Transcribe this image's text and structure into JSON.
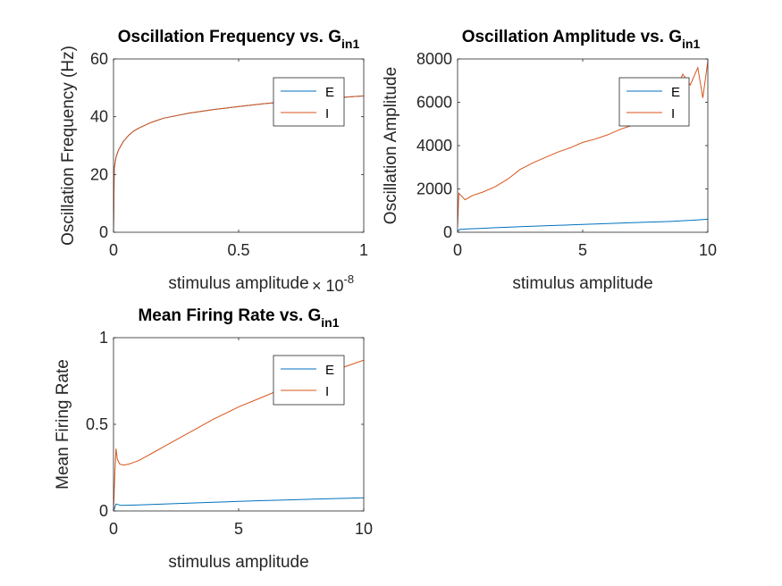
{
  "colors": {
    "E": "#0072BD",
    "I": "#D95319",
    "axis": "#262626",
    "background": "#ffffff"
  },
  "chart_data": [
    {
      "type": "line",
      "title": "Oscillation Frequency vs. G",
      "title_subscript": "in1",
      "xlabel": "stimulus amplitude",
      "ylabel": "Oscillation Frequency (Hz)",
      "xlim": [
        0,
        1
      ],
      "ylim": [
        0,
        60
      ],
      "xticks": [
        0,
        0.5,
        1
      ],
      "xtick_labels": [
        "0",
        "0.5",
        "1"
      ],
      "yticks": [
        0,
        20,
        40,
        60
      ],
      "ytick_labels": [
        "0",
        "20",
        "40",
        "60"
      ],
      "x_exponent": {
        "base": "× 10",
        "power": "-8"
      },
      "legend": {
        "placement": "top-right",
        "entries": [
          "E",
          "I"
        ]
      },
      "series": [
        {
          "name": "E",
          "color": "#0072BD",
          "x": [
            0,
            0.003,
            0.01,
            0.02,
            0.04,
            0.06,
            0.08,
            0.1,
            0.15,
            0.2,
            0.3,
            0.4,
            0.5,
            0.6,
            0.7,
            0.8,
            0.9,
            1.0
          ],
          "y": [
            0,
            22,
            26,
            28.5,
            31.5,
            33.5,
            35,
            36,
            38,
            39.5,
            41.2,
            42.5,
            43.5,
            44.5,
            45.3,
            46,
            46.6,
            47.2
          ]
        },
        {
          "name": "I",
          "color": "#D95319",
          "x": [
            0,
            0.003,
            0.01,
            0.02,
            0.04,
            0.06,
            0.08,
            0.1,
            0.15,
            0.2,
            0.3,
            0.4,
            0.5,
            0.6,
            0.7,
            0.8,
            0.9,
            1.0
          ],
          "y": [
            0,
            22,
            26,
            28.5,
            31.5,
            33.5,
            35,
            36,
            38,
            39.5,
            41.2,
            42.5,
            43.5,
            44.5,
            45.3,
            46,
            46.6,
            47.2
          ]
        }
      ]
    },
    {
      "type": "line",
      "title": "Oscillation Amplitude vs. G",
      "title_subscript": "in1",
      "xlabel": "stimulus amplitude",
      "ylabel": "Oscillation Amplitude",
      "xlim": [
        0,
        10
      ],
      "ylim": [
        0,
        8000
      ],
      "xticks": [
        0,
        5,
        10
      ],
      "xtick_labels": [
        "0",
        "5",
        "10"
      ],
      "yticks": [
        0,
        2000,
        4000,
        6000,
        8000
      ],
      "ytick_labels": [
        "0",
        "2000",
        "4000",
        "6000",
        "8000"
      ],
      "legend": {
        "placement": "top-right",
        "entries": [
          "E",
          "I"
        ]
      },
      "series": [
        {
          "name": "E",
          "color": "#0072BD",
          "x": [
            0,
            0.1,
            0.5,
            1,
            1.5,
            2,
            2.5,
            3,
            3.5,
            4,
            4.5,
            5,
            5.5,
            6,
            6.5,
            7,
            7.5,
            8,
            8.5,
            9,
            9.5,
            10
          ],
          "y": [
            50,
            130,
            160,
            180,
            210,
            230,
            260,
            280,
            300,
            320,
            340,
            360,
            380,
            400,
            420,
            440,
            460,
            480,
            500,
            530,
            560,
            600
          ]
        },
        {
          "name": "I",
          "color": "#D95319",
          "x": [
            0,
            0.05,
            0.3,
            0.6,
            1,
            1.5,
            2,
            2.5,
            3,
            3.5,
            4,
            4.5,
            5,
            5.5,
            6,
            6.5,
            7,
            7.5,
            8,
            8.5,
            9,
            9.3,
            9.6,
            9.8,
            10
          ],
          "y": [
            300,
            1800,
            1500,
            1700,
            1850,
            2100,
            2450,
            2900,
            3200,
            3450,
            3700,
            3900,
            4150,
            4300,
            4500,
            4750,
            4950,
            5300,
            5700,
            6000,
            7300,
            6800,
            7600,
            6200,
            7900
          ]
        }
      ]
    },
    {
      "type": "line",
      "title": "Mean Firing Rate vs. G",
      "title_subscript": "in1",
      "xlabel": "stimulus amplitude",
      "ylabel": "Mean Firing Rate",
      "xlim": [
        0,
        10
      ],
      "ylim": [
        0,
        1
      ],
      "xticks": [
        0,
        5,
        10
      ],
      "xtick_labels": [
        "0",
        "5",
        "10"
      ],
      "yticks": [
        0,
        0.5,
        1
      ],
      "ytick_labels": [
        "0",
        "0.5",
        "1"
      ],
      "legend": {
        "placement": "top-right",
        "entries": [
          "E",
          "I"
        ]
      },
      "series": [
        {
          "name": "E",
          "color": "#0072BD",
          "x": [
            0,
            0.1,
            0.3,
            0.5,
            1,
            2,
            3,
            4,
            5,
            6,
            7,
            8,
            9,
            10
          ],
          "y": [
            0,
            0.04,
            0.032,
            0.033,
            0.035,
            0.04,
            0.045,
            0.05,
            0.055,
            0.06,
            0.064,
            0.068,
            0.072,
            0.076
          ]
        },
        {
          "name": "I",
          "color": "#D95319",
          "x": [
            0,
            0.05,
            0.1,
            0.15,
            0.25,
            0.4,
            0.6,
            0.8,
            1,
            1.5,
            2,
            3,
            4,
            5,
            6,
            7,
            8,
            9,
            10
          ],
          "y": [
            0,
            0.2,
            0.36,
            0.3,
            0.27,
            0.265,
            0.27,
            0.28,
            0.29,
            0.33,
            0.37,
            0.45,
            0.53,
            0.6,
            0.66,
            0.72,
            0.77,
            0.82,
            0.87
          ]
        }
      ]
    }
  ]
}
